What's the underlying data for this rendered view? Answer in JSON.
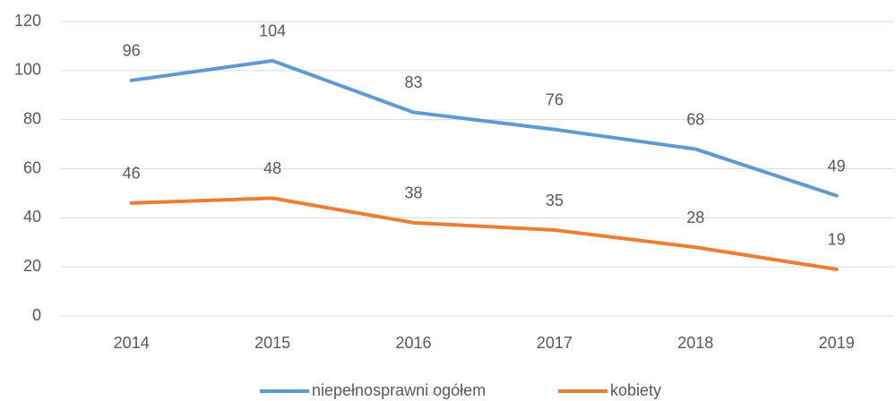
{
  "chart_data": {
    "type": "line",
    "categories": [
      "2014",
      "2015",
      "2016",
      "2017",
      "2018",
      "2019"
    ],
    "series": [
      {
        "name": "niepełnosprawni ogółem",
        "color": "#5b9bd5",
        "values": [
          96,
          104,
          83,
          76,
          68,
          49
        ]
      },
      {
        "name": "kobiety",
        "color": "#ed7d31",
        "values": [
          46,
          48,
          38,
          35,
          28,
          19
        ]
      }
    ],
    "ylim": [
      0,
      120
    ],
    "yticks": [
      0,
      20,
      40,
      60,
      80,
      100,
      120
    ],
    "grid": true,
    "legend": "bottom"
  }
}
